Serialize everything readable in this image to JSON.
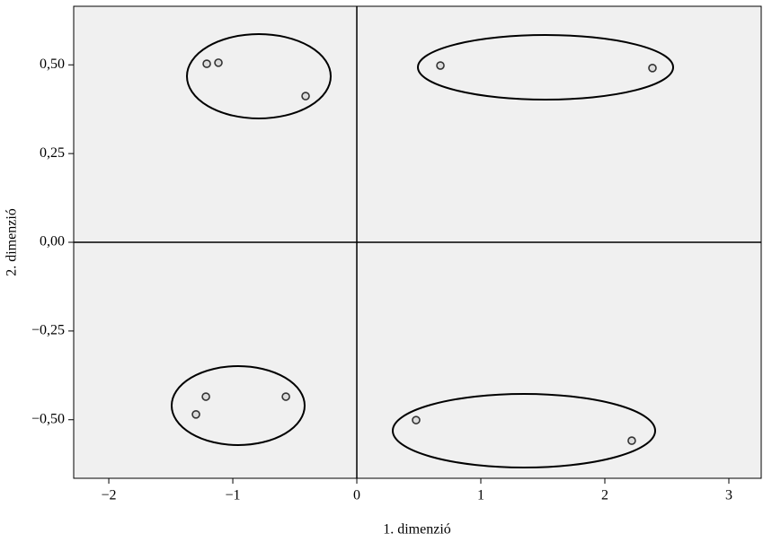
{
  "chart_data": {
    "type": "scatter",
    "x_label": "1. dimenzió",
    "y_label": "2. dimenzió",
    "x": [
      -1.21,
      -1.116,
      -0.413,
      0.674,
      2.384,
      -1.217,
      -0.572,
      -1.297,
      0.478,
      2.217
    ],
    "values": [
      0.503,
      0.506,
      0.412,
      0.498,
      0.491,
      -0.435,
      -0.435,
      -0.485,
      -0.501,
      -0.559
    ],
    "color": "#333333",
    "xlim": [
      -2.283,
      3.261
    ],
    "ylim": [
      -0.665,
      0.665
    ],
    "xticks": [
      {
        "value": -2,
        "label": "−2"
      },
      {
        "value": -1,
        "label": "−1"
      },
      0,
      1,
      2,
      3
    ],
    "yticks": [
      {
        "value": -0.5,
        "label": "−0,50"
      },
      {
        "value": -0.25,
        "label": "−0,25"
      },
      {
        "value": 0,
        "label": "0,00"
      },
      {
        "value": 0.25,
        "label": "0,25"
      },
      {
        "value": 0.5,
        "label": "0,50"
      }
    ]
  }
}
